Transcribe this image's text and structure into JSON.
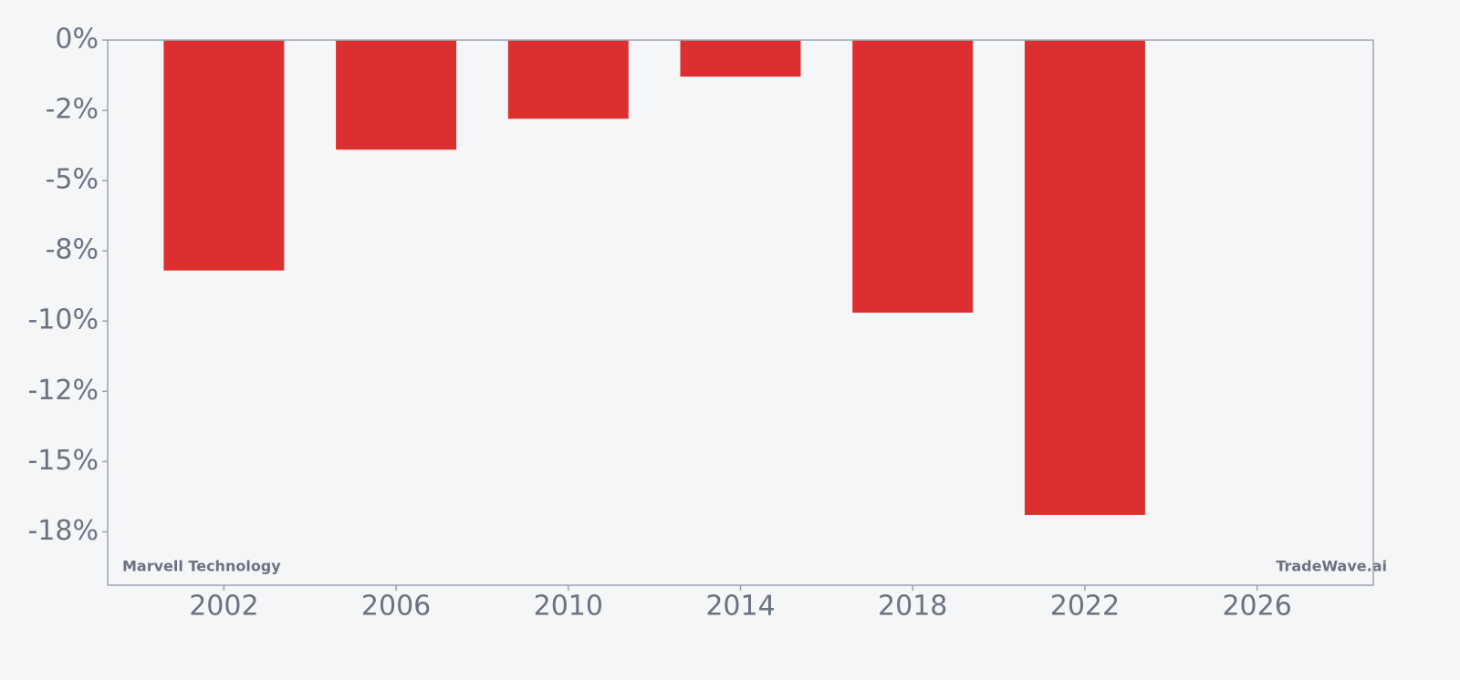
{
  "chart_data": {
    "type": "bar",
    "x": [
      2002,
      2006,
      2010,
      2014,
      2018,
      2022
    ],
    "values": [
      -8.2,
      -3.9,
      -2.8,
      -1.3,
      -9.7,
      -16.9
    ],
    "color": "#dc3030",
    "xlim": [
      1999.3,
      2028.7
    ],
    "xticks": [
      2002,
      2006,
      2010,
      2014,
      2018,
      2022,
      2026
    ],
    "ylim": [
      -19.4,
      0
    ],
    "yticks": [
      {
        "value": 0,
        "label": "0%"
      },
      {
        "value": -2.5,
        "label": "-2%"
      },
      {
        "value": -5,
        "label": "-5%"
      },
      {
        "value": -7.5,
        "label": "-8%"
      },
      {
        "value": -10,
        "label": "-10%"
      },
      {
        "value": -12.5,
        "label": "-12%"
      },
      {
        "value": -15,
        "label": "-15%"
      },
      {
        "value": -17.5,
        "label": "-18%"
      }
    ],
    "annotations": [
      "Marvell Technology",
      "TradeWave.ai"
    ]
  }
}
